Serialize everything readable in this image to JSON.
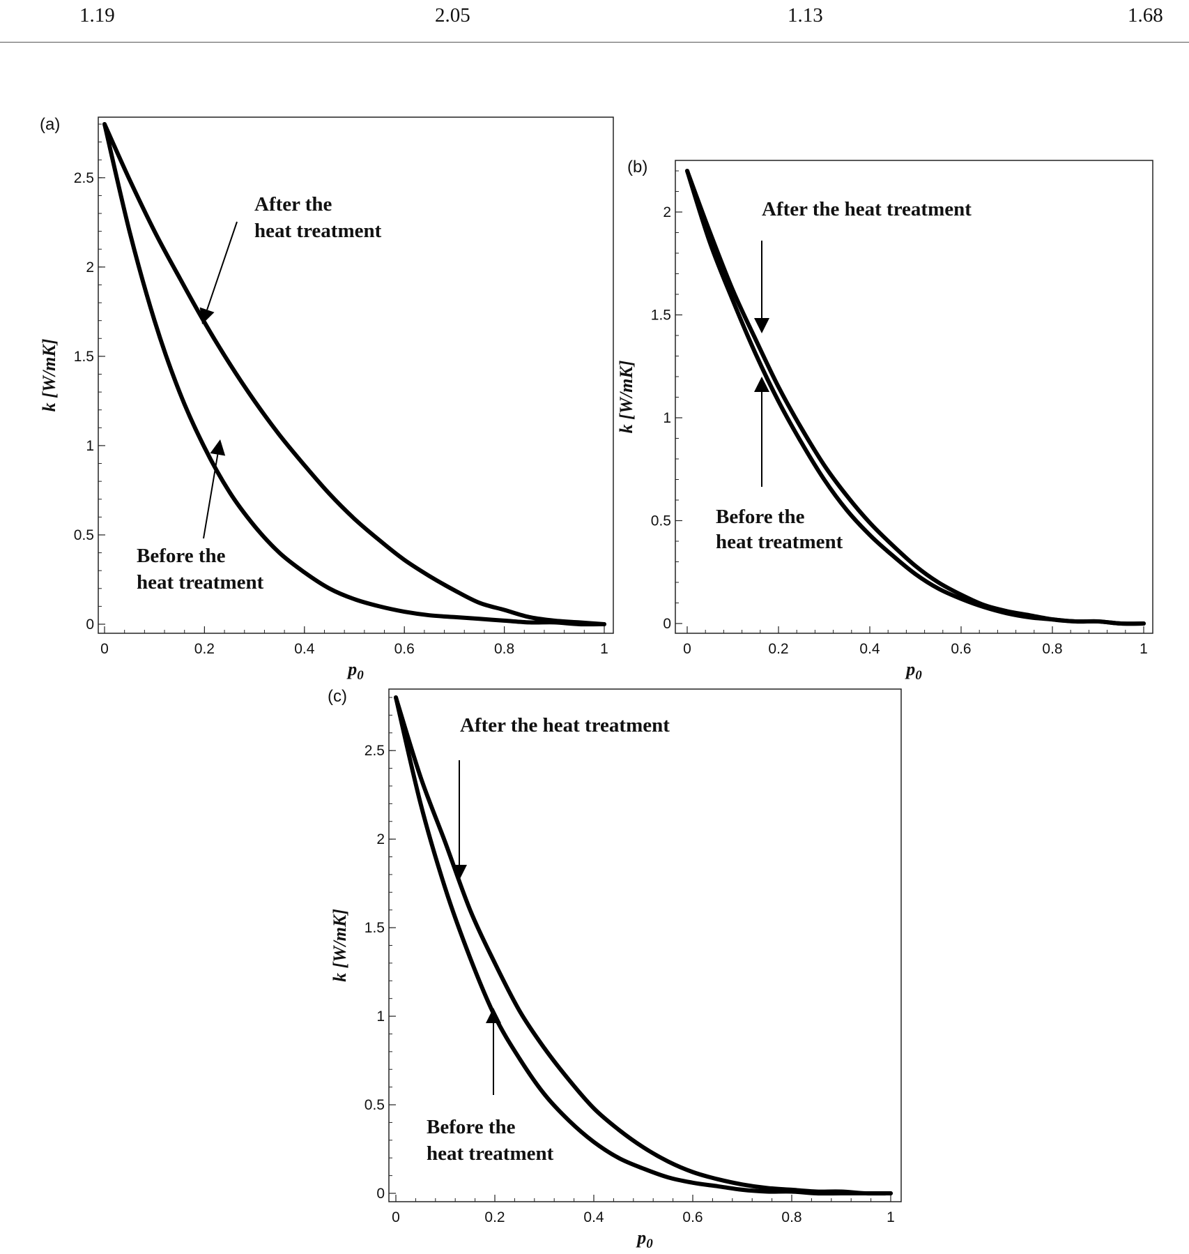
{
  "table_row": [
    "1.19",
    "2.05",
    "1.13",
    "1.68"
  ],
  "chart_data": [
    {
      "type": "line",
      "panel": "(a)",
      "xlabel": "p0",
      "ylabel": "k [W/mK]",
      "xlim": [
        0,
        1
      ],
      "ylim": [
        0,
        2.8
      ],
      "xticks": [
        0,
        0.2,
        0.4,
        0.6,
        0.8,
        1
      ],
      "yticks": [
        0,
        0.5,
        1,
        1.5,
        2,
        2.5
      ],
      "series": [
        {
          "name": "After the heat treatment",
          "x": [
            0,
            0.05,
            0.1,
            0.15,
            0.2,
            0.25,
            0.3,
            0.35,
            0.4,
            0.45,
            0.5,
            0.55,
            0.6,
            0.65,
            0.7,
            0.75,
            0.8,
            0.85,
            0.9,
            0.95,
            1
          ],
          "y": [
            2.8,
            2.49,
            2.2,
            1.94,
            1.69,
            1.46,
            1.25,
            1.06,
            0.89,
            0.73,
            0.59,
            0.47,
            0.36,
            0.27,
            0.19,
            0.12,
            0.08,
            0.04,
            0.02,
            0.01,
            0
          ]
        },
        {
          "name": "Before the heat treatment",
          "x": [
            0,
            0.05,
            0.1,
            0.15,
            0.2,
            0.25,
            0.3,
            0.35,
            0.4,
            0.45,
            0.5,
            0.55,
            0.6,
            0.65,
            0.7,
            0.75,
            0.8,
            0.85,
            0.9,
            0.95,
            1
          ],
          "y": [
            2.8,
            2.2,
            1.7,
            1.3,
            0.99,
            0.74,
            0.55,
            0.4,
            0.29,
            0.2,
            0.14,
            0.1,
            0.07,
            0.05,
            0.04,
            0.03,
            0.02,
            0.01,
            0.01,
            0,
            0
          ]
        }
      ],
      "annotations": [
        [
          "After the",
          "heat treatment"
        ],
        [
          "Before the",
          "heat treatment"
        ]
      ]
    },
    {
      "type": "line",
      "panel": "(b)",
      "xlabel": "p0",
      "ylabel": "k [W/mK]",
      "xlim": [
        0,
        1
      ],
      "ylim": [
        0,
        2.2
      ],
      "xticks": [
        0,
        0.2,
        0.4,
        0.6,
        0.8,
        1
      ],
      "yticks": [
        0,
        0.5,
        1,
        1.5,
        2
      ],
      "series": [
        {
          "name": "After the heat treatment",
          "x": [
            0,
            0.05,
            0.1,
            0.15,
            0.2,
            0.25,
            0.3,
            0.35,
            0.4,
            0.45,
            0.5,
            0.55,
            0.6,
            0.65,
            0.7,
            0.75,
            0.8,
            0.85,
            0.9,
            0.95,
            1
          ],
          "y": [
            2.2,
            1.9,
            1.62,
            1.38,
            1.15,
            0.95,
            0.77,
            0.62,
            0.49,
            0.38,
            0.28,
            0.2,
            0.14,
            0.09,
            0.06,
            0.04,
            0.02,
            0.01,
            0.01,
            0,
            0
          ]
        },
        {
          "name": "Before the heat treatment",
          "x": [
            0,
            0.05,
            0.1,
            0.15,
            0.2,
            0.25,
            0.3,
            0.35,
            0.4,
            0.45,
            0.5,
            0.55,
            0.6,
            0.65,
            0.7,
            0.75,
            0.8,
            0.85,
            0.9,
            0.95,
            1
          ],
          "y": [
            2.2,
            1.85,
            1.57,
            1.31,
            1.08,
            0.88,
            0.7,
            0.55,
            0.43,
            0.33,
            0.24,
            0.17,
            0.12,
            0.08,
            0.05,
            0.03,
            0.02,
            0.01,
            0.01,
            0,
            0
          ]
        }
      ],
      "annotations": [
        [
          "After the heat treatment"
        ],
        [
          "Before the",
          "heat treatment"
        ]
      ]
    },
    {
      "type": "line",
      "panel": "(c)",
      "xlabel": "p0",
      "ylabel": "k [W/mK]",
      "xlim": [
        0,
        1
      ],
      "ylim": [
        0,
        2.8
      ],
      "xticks": [
        0,
        0.2,
        0.4,
        0.6,
        0.8,
        1
      ],
      "yticks": [
        0,
        0.5,
        1,
        1.5,
        2,
        2.5
      ],
      "series": [
        {
          "name": "After the heat treatment",
          "x": [
            0,
            0.05,
            0.1,
            0.15,
            0.2,
            0.25,
            0.3,
            0.35,
            0.4,
            0.45,
            0.5,
            0.55,
            0.6,
            0.65,
            0.7,
            0.75,
            0.8,
            0.85,
            0.9,
            0.95,
            1
          ],
          "y": [
            2.8,
            2.35,
            1.98,
            1.6,
            1.3,
            1.03,
            0.82,
            0.64,
            0.48,
            0.36,
            0.26,
            0.18,
            0.12,
            0.08,
            0.05,
            0.03,
            0.02,
            0.01,
            0.01,
            0,
            0
          ]
        },
        {
          "name": "Before the heat treatment",
          "x": [
            0,
            0.05,
            0.1,
            0.15,
            0.2,
            0.25,
            0.3,
            0.35,
            0.4,
            0.45,
            0.5,
            0.55,
            0.6,
            0.65,
            0.7,
            0.75,
            0.8,
            0.85,
            0.9,
            0.95,
            1
          ],
          "y": [
            2.8,
            2.2,
            1.72,
            1.33,
            1.0,
            0.76,
            0.56,
            0.41,
            0.29,
            0.2,
            0.14,
            0.09,
            0.06,
            0.04,
            0.02,
            0.01,
            0.01,
            0,
            0,
            0,
            0
          ]
        }
      ],
      "annotations": [
        [
          "After the heat treatment"
        ],
        [
          "Before the",
          "heat treatment"
        ]
      ]
    }
  ]
}
